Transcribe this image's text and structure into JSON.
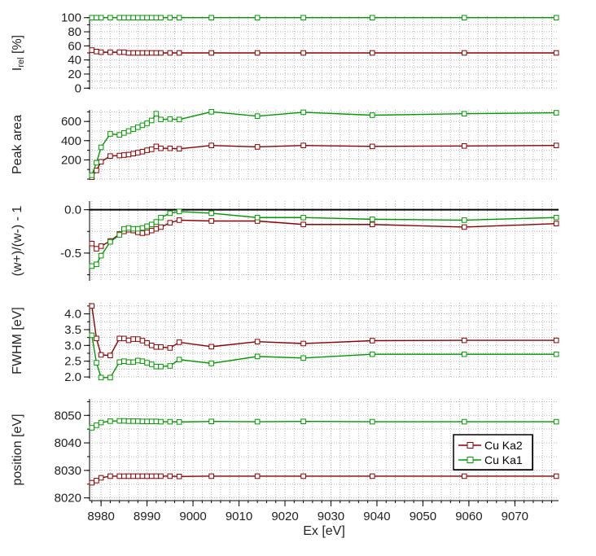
{
  "chart_data": {
    "type": "line",
    "shared_x": {
      "xlabel": "Ex [eV]",
      "xlim": [
        8977.5,
        9079.5
      ],
      "xticks": [
        8980,
        8990,
        9000,
        9010,
        9020,
        9030,
        9040,
        9050,
        9060,
        9070
      ],
      "x": [
        8978,
        8979,
        8980,
        8982,
        8984,
        8985,
        8986,
        8987,
        8988,
        8989,
        8990,
        8991,
        8992,
        8993,
        8995,
        8997,
        9004,
        9014,
        9024,
        9039,
        9059,
        9079
      ]
    },
    "legend": {
      "placement": "bottom-right of lowest panel",
      "entries": [
        {
          "name": "Cu Ka2",
          "color": "#8b0000"
        },
        {
          "name": "Cu Ka1",
          "color": "#009900"
        }
      ]
    },
    "panels": [
      {
        "id": "irel",
        "ylabel_main": "I",
        "ylabel_sub": "rel",
        "ylabel_tail": " [%]",
        "ylim": [
          -2,
          102
        ],
        "yticks": [
          0,
          20,
          40,
          60,
          80,
          100
        ],
        "ytick_labels": [
          "0",
          "20",
          "40",
          "60",
          "80",
          "100"
        ],
        "zero_line": false,
        "series": [
          {
            "name": "Cu Ka2",
            "values": [
              54,
              52,
              51,
              51,
              51,
              51,
              50,
              50,
              50,
              50,
              50,
              50,
              50,
              50,
              50,
              50,
              50,
              50,
              50,
              50,
              50,
              50
            ]
          },
          {
            "name": "Cu Ka1",
            "values": [
              100,
              100,
              100,
              100,
              100,
              100,
              100,
              100,
              100,
              100,
              100,
              100,
              100,
              100,
              100,
              100,
              100,
              100,
              100,
              100,
              100,
              100
            ]
          }
        ]
      },
      {
        "id": "peak-area",
        "ylabel_main": "Peak area",
        "ylim": [
          0,
          720
        ],
        "yticks": [
          200,
          400,
          600
        ],
        "ytick_labels": [
          "200",
          "400",
          "600"
        ],
        "zero_line": false,
        "series": [
          {
            "name": "Cu Ka2",
            "values": [
              20,
              90,
              180,
              240,
              245,
              250,
              255,
              265,
              275,
              285,
              300,
              310,
              340,
              320,
              320,
              315,
              350,
              335,
              350,
              340,
              345,
              350
            ]
          },
          {
            "name": "Cu Ka1",
            "values": [
              40,
              170,
              330,
              470,
              460,
              480,
              500,
              520,
              540,
              560,
              580,
              610,
              680,
              620,
              625,
              620,
              700,
              655,
              695,
              665,
              680,
              690
            ]
          }
        ]
      },
      {
        "id": "wratio",
        "ylabel_main": "(w+)/(w-) - 1",
        "ylim": [
          -0.82,
          0.1
        ],
        "yticks": [
          -0.5,
          0
        ],
        "ytick_labels": [
          "-0.5",
          "0.0"
        ],
        "zero_line": true,
        "series": [
          {
            "name": "Cu Ka2",
            "values": [
              -0.39,
              -0.45,
              -0.42,
              -0.36,
              -0.28,
              -0.25,
              -0.23,
              -0.24,
              -0.26,
              -0.27,
              -0.26,
              -0.24,
              -0.22,
              -0.2,
              -0.15,
              -0.12,
              -0.13,
              -0.13,
              -0.17,
              -0.17,
              -0.2,
              -0.16
            ]
          },
          {
            "name": "Cu Ka1",
            "values": [
              -0.65,
              -0.63,
              -0.53,
              -0.37,
              -0.29,
              -0.22,
              -0.21,
              -0.22,
              -0.22,
              -0.21,
              -0.19,
              -0.17,
              -0.14,
              -0.09,
              -0.04,
              -0.02,
              -0.04,
              -0.09,
              -0.09,
              -0.11,
              -0.12,
              -0.09
            ]
          }
        ]
      },
      {
        "id": "fwhm",
        "ylabel_main": "FWHM [eV]",
        "ylim": [
          1.95,
          4.35
        ],
        "yticks": [
          2,
          2.5,
          3,
          3.5,
          4
        ],
        "ytick_labels": [
          "2.0",
          "2.5",
          "3.0",
          "3.5",
          "4.0"
        ],
        "zero_line": false,
        "series": [
          {
            "name": "Cu Ka2",
            "values": [
              4.25,
              3.22,
              2.7,
              2.68,
              3.22,
              3.22,
              3.16,
              3.2,
              3.2,
              3.15,
              3.08,
              3.0,
              2.95,
              2.95,
              2.92,
              3.1,
              2.96,
              3.12,
              3.06,
              3.15,
              3.16,
              3.16
            ]
          },
          {
            "name": "Cu Ka1",
            "values": [
              3.32,
              2.45,
              1.98,
              1.98,
              2.47,
              2.5,
              2.47,
              2.47,
              2.52,
              2.5,
              2.45,
              2.4,
              2.33,
              2.33,
              2.35,
              2.55,
              2.43,
              2.65,
              2.6,
              2.72,
              2.72,
              2.72
            ]
          }
        ]
      },
      {
        "id": "position",
        "ylabel_main": "position [eV]",
        "ylim": [
          8019,
          8056
        ],
        "yticks": [
          8020,
          8030,
          8040,
          8050
        ],
        "ytick_labels": [
          "8020",
          "8030",
          "8040",
          "8050"
        ],
        "zero_line": false,
        "series": [
          {
            "name": "Cu Ka2",
            "values": [
              8025.5,
              8026.3,
              8027.3,
              8027.9,
              8027.9,
              8027.9,
              8027.9,
              8027.9,
              8027.9,
              8027.9,
              8027.9,
              8027.9,
              8027.9,
              8027.9,
              8027.9,
              8027.8,
              8027.9,
              8027.9,
              8027.9,
              8027.9,
              8027.9,
              8027.9
            ]
          },
          {
            "name": "Cu Ka1",
            "values": [
              8045.5,
              8046.4,
              8047.4,
              8047.9,
              8048.0,
              8048.0,
              8047.9,
              8047.9,
              8047.9,
              8047.8,
              8047.8,
              8047.8,
              8047.8,
              8047.7,
              8047.7,
              8047.6,
              8047.8,
              8047.7,
              8047.8,
              8047.7,
              8047.7,
              8047.7
            ]
          }
        ]
      }
    ]
  }
}
